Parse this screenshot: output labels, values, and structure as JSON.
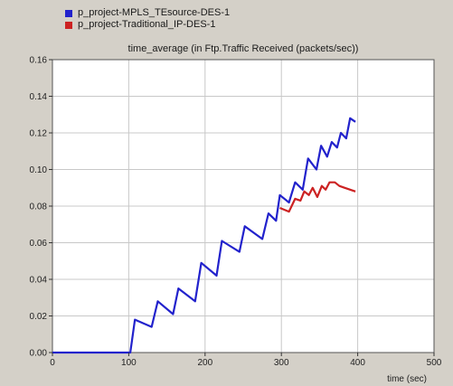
{
  "legend": {
    "items": [
      {
        "label": "p_project-MPLS_TEsource-DES-1",
        "color": "#2222cc"
      },
      {
        "label": "p_project-Traditional_IP-DES-1",
        "color": "#cc2222"
      }
    ]
  },
  "chart_data": {
    "type": "line",
    "title": "time_average (in Ftp.Traffic Received (packets/sec))",
    "xlabel": "time (sec)",
    "ylabel": "",
    "xlim": [
      0,
      500
    ],
    "ylim": [
      0,
      0.16
    ],
    "x_ticks": [
      0,
      100,
      200,
      300,
      400,
      500
    ],
    "y_ticks": [
      "0.00",
      "0.02",
      "0.04",
      "0.06",
      "0.08",
      "0.10",
      "0.12",
      "0.14",
      "0.16"
    ],
    "grid": true,
    "background": "#ffffff",
    "series": [
      {
        "name": "p_project-MPLS_TEsource-DES-1",
        "color": "#2222cc",
        "points": [
          [
            0,
            0
          ],
          [
            102,
            0
          ],
          [
            108,
            0.018
          ],
          [
            130,
            0.014
          ],
          [
            138,
            0.028
          ],
          [
            158,
            0.021
          ],
          [
            165,
            0.035
          ],
          [
            187,
            0.028
          ],
          [
            195,
            0.049
          ],
          [
            215,
            0.042
          ],
          [
            222,
            0.061
          ],
          [
            245,
            0.055
          ],
          [
            252,
            0.069
          ],
          [
            275,
            0.062
          ],
          [
            283,
            0.076
          ],
          [
            293,
            0.072
          ],
          [
            298,
            0.086
          ],
          [
            310,
            0.082
          ],
          [
            318,
            0.093
          ],
          [
            328,
            0.089
          ],
          [
            335,
            0.106
          ],
          [
            346,
            0.1
          ],
          [
            352,
            0.113
          ],
          [
            360,
            0.107
          ],
          [
            366,
            0.115
          ],
          [
            373,
            0.112
          ],
          [
            378,
            0.12
          ],
          [
            385,
            0.117
          ],
          [
            390,
            0.128
          ],
          [
            397,
            0.126
          ]
        ]
      },
      {
        "name": "p_project-Traditional_IP-DES-1",
        "color": "#cc2222",
        "points": [
          [
            298,
            0.079
          ],
          [
            310,
            0.077
          ],
          [
            318,
            0.084
          ],
          [
            325,
            0.083
          ],
          [
            330,
            0.088
          ],
          [
            336,
            0.086
          ],
          [
            341,
            0.09
          ],
          [
            347,
            0.085
          ],
          [
            353,
            0.091
          ],
          [
            358,
            0.089
          ],
          [
            363,
            0.093
          ],
          [
            370,
            0.093
          ],
          [
            376,
            0.091
          ],
          [
            383,
            0.09
          ],
          [
            397,
            0.088
          ]
        ]
      }
    ]
  }
}
